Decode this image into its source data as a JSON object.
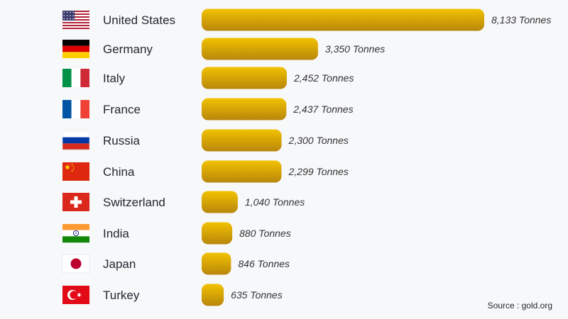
{
  "chart_data": {
    "type": "bar",
    "orientation": "horizontal",
    "categories": [
      "United States",
      "Germany",
      "Italy",
      "France",
      "Russia",
      "China",
      "Switzerland",
      "India",
      "Japan",
      "Turkey"
    ],
    "values": [
      8133,
      3350,
      2452,
      2437,
      2300,
      2299,
      1040,
      880,
      846,
      635
    ],
    "value_labels": [
      "8,133 Tonnes",
      "3,350 Tonnes",
      "2,452 Tonnes",
      "2,437 Tonnes",
      "2,300 Tonnes",
      "2,299 Tonnes",
      "1,040 Tonnes",
      "880 Tonnes",
      "846 Tonnes",
      "635 Tonnes"
    ],
    "flags": [
      "us-flag",
      "germany-flag",
      "italy-flag",
      "france-flag",
      "russia-flag",
      "china-flag",
      "switzerland-flag",
      "india-flag",
      "japan-flag",
      "turkey-flag"
    ],
    "colors": {
      "bar_top": "#f2c200",
      "bar_bottom": "#b8860b",
      "background": "#f7f8fa"
    },
    "grid": false
  },
  "source": "Source : gold.org"
}
